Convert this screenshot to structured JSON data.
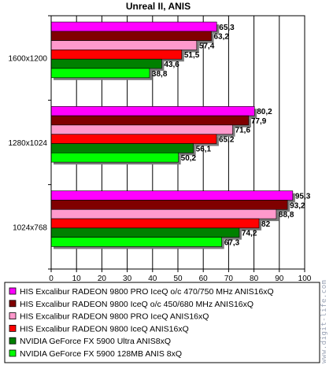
{
  "chart_data": {
    "type": "bar",
    "orientation": "horizontal",
    "title": "Unreal II, ANIS",
    "categories": [
      "1600x1200",
      "1280x1024",
      "1024x768"
    ],
    "xlim": [
      0,
      100
    ],
    "x_ticks": [
      "0",
      "10",
      "20",
      "30",
      "40",
      "50",
      "60",
      "70",
      "80",
      "90",
      "100"
    ],
    "grid": true,
    "legend_position": "bottom",
    "series": [
      {
        "name": "HIS Excalibur RADEON 9800 PRO IceQ o/c 470/750 MHz ANIS16xQ",
        "color": "#ff00ff",
        "values": [
          65.3,
          80.2,
          95.3
        ],
        "labels": [
          "65,3",
          "80,2",
          "95,3"
        ]
      },
      {
        "name": "HIS Excalibur RADEON 9800 IceQ o/c 450/680 MHz ANIS16xQ",
        "color": "#800000",
        "values": [
          63.2,
          77.9,
          93.2
        ],
        "labels": [
          "63,2",
          "77,9",
          "93,2"
        ]
      },
      {
        "name": "HIS Excalibur RADEON 9800 PRO IceQ ANIS16xQ",
        "color": "#ff99cc",
        "values": [
          57.4,
          71.6,
          88.8
        ],
        "labels": [
          "57,4",
          "71,6",
          "88,8"
        ]
      },
      {
        "name": "HIS Excalibur RADEON 9800 IceQ ANIS16xQ",
        "color": "#ff0000",
        "values": [
          51.5,
          65.2,
          82
        ],
        "labels": [
          "51,5",
          "65,2",
          "82"
        ]
      },
      {
        "name": "NVIDIA GeForce FX 5900 Ultra ANIS8xQ",
        "color": "#008000",
        "values": [
          43.6,
          56.1,
          74.2
        ],
        "labels": [
          "43,6",
          "56,1",
          "74,2"
        ]
      },
      {
        "name": "NVIDIA GeForce FX 5900 128MB ANIS 8xQ",
        "color": "#00ff00",
        "values": [
          38.8,
          50.2,
          67.3
        ],
        "labels": [
          "38,8",
          "50,2",
          "67,3"
        ]
      }
    ],
    "watermark": "www.digit-life.com"
  },
  "colors": {
    "plot_background": "#ffffff",
    "grid": "#000000",
    "border": "#000000"
  }
}
